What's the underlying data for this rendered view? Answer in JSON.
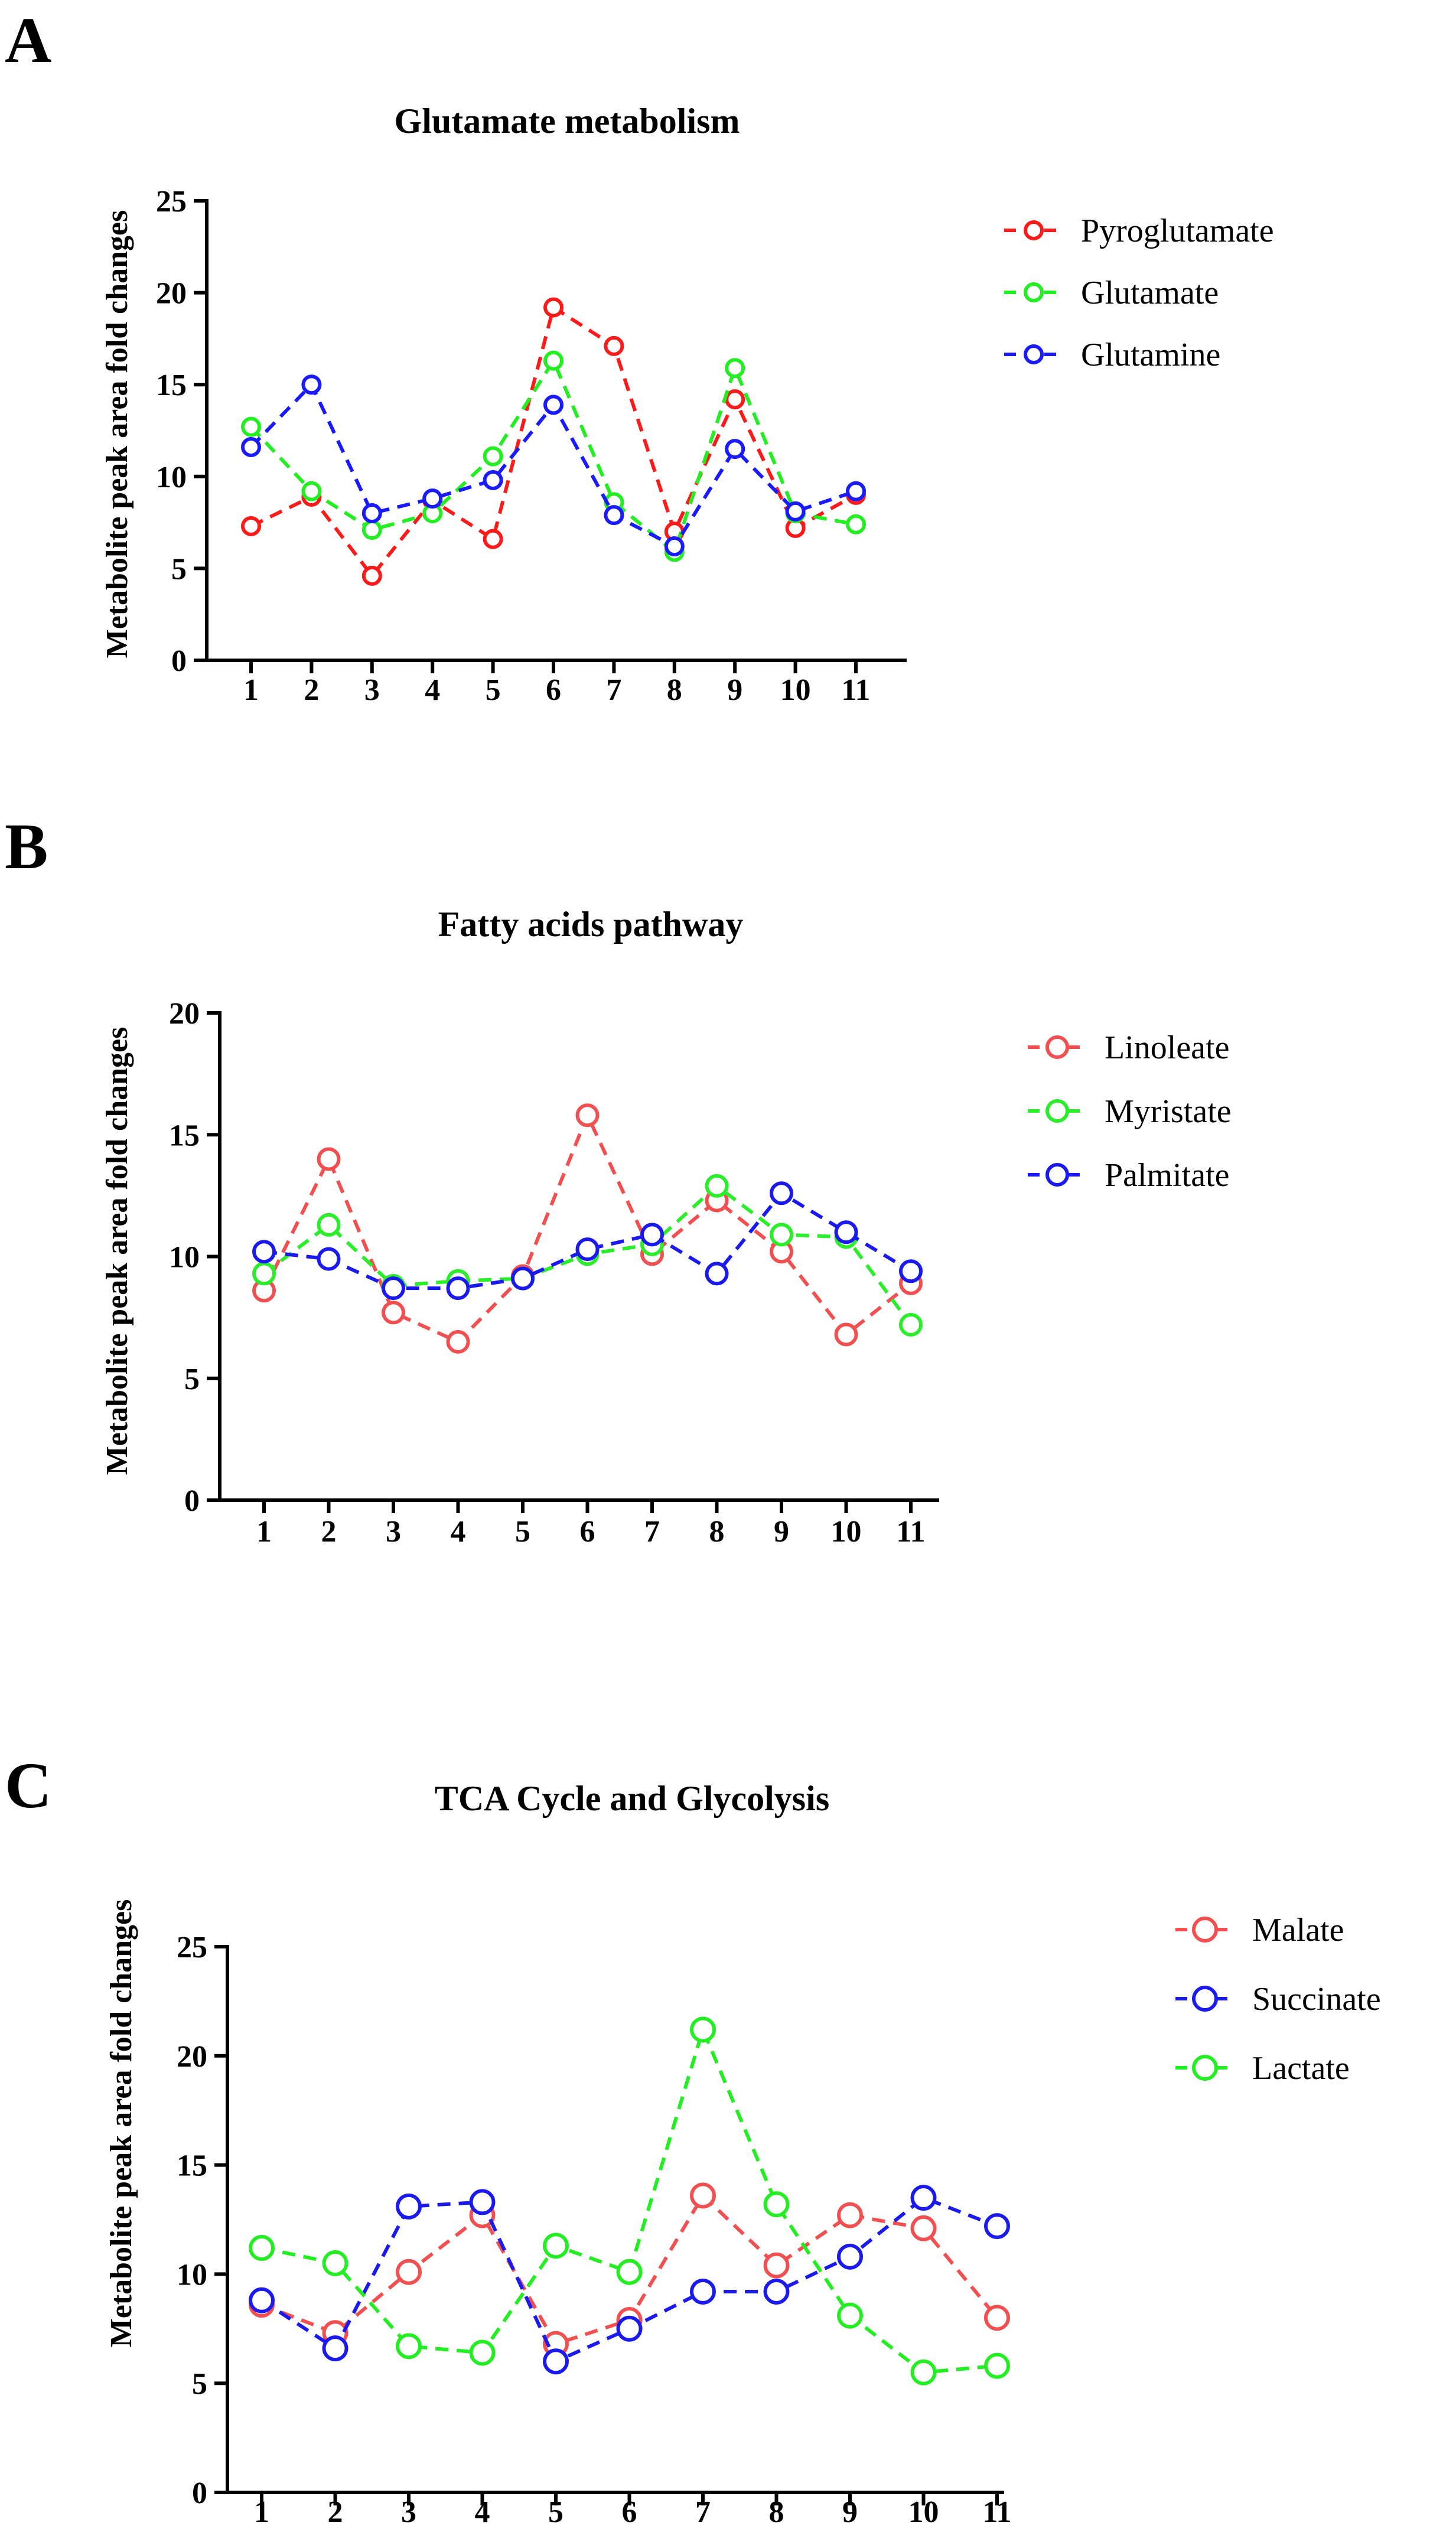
{
  "chart_data": [
    {
      "type": "line",
      "panel": "A",
      "title": "Glutamate metabolism",
      "xlabel": "",
      "ylabel": "Metabolite peak area fold changes",
      "categories": [
        "1",
        "2",
        "3",
        "4",
        "5",
        "6",
        "7",
        "8",
        "9",
        "10",
        "11"
      ],
      "ylim": [
        0,
        25
      ],
      "yticks": [
        "0",
        "5",
        "10",
        "15",
        "20",
        "25"
      ],
      "grid": false,
      "legend_position": "right",
      "series": [
        {
          "name": "Pyroglutamate",
          "color": "#ff1a1a",
          "values": [
            7.3,
            8.9,
            4.6,
            8.7,
            6.6,
            19.2,
            17.1,
            7.0,
            14.2,
            7.2,
            9.0
          ]
        },
        {
          "name": "Glutamate",
          "color": "#22ee22",
          "values": [
            12.7,
            9.2,
            7.1,
            8.0,
            11.1,
            16.3,
            8.6,
            5.9,
            15.9,
            8.0,
            7.4
          ]
        },
        {
          "name": "Glutamine",
          "color": "#1a1aff",
          "values": [
            11.6,
            15.0,
            8.0,
            8.8,
            9.8,
            13.9,
            7.9,
            6.2,
            11.5,
            8.1,
            9.2
          ]
        }
      ]
    },
    {
      "type": "line",
      "panel": "B",
      "title": "Fatty acids pathway",
      "xlabel": "",
      "ylabel": "Metabolite peak area fold changes",
      "categories": [
        "1",
        "2",
        "3",
        "4",
        "5",
        "6",
        "7",
        "8",
        "9",
        "10",
        "11"
      ],
      "ylim": [
        0,
        20
      ],
      "yticks": [
        "0",
        "5",
        "10",
        "15",
        "20"
      ],
      "grid": false,
      "legend_position": "right",
      "series": [
        {
          "name": "Linoleate",
          "color": "#f25050",
          "values": [
            8.6,
            14.0,
            7.7,
            6.5,
            9.2,
            15.8,
            10.1,
            12.3,
            10.2,
            6.8,
            8.9
          ]
        },
        {
          "name": "Myristate",
          "color": "#2aee2a",
          "values": [
            9.3,
            11.3,
            8.8,
            9.0,
            9.1,
            10.1,
            10.5,
            12.9,
            10.9,
            10.8,
            7.2
          ]
        },
        {
          "name": "Palmitate",
          "color": "#1a1aee",
          "values": [
            10.2,
            9.9,
            8.7,
            8.7,
            9.1,
            10.3,
            10.9,
            9.3,
            12.6,
            11.0,
            9.4
          ]
        }
      ]
    },
    {
      "type": "line",
      "panel": "C",
      "title": "TCA Cycle and Glycolysis",
      "xlabel": "",
      "ylabel": "Metabolite peak area fold changes",
      "categories": [
        "1",
        "2",
        "3",
        "4",
        "5",
        "6",
        "7",
        "8",
        "9",
        "10",
        "11"
      ],
      "ylim": [
        0,
        25
      ],
      "yticks": [
        "0",
        "5",
        "10",
        "15",
        "20",
        "25"
      ],
      "grid": false,
      "legend_position": "right",
      "series": [
        {
          "name": "Malate",
          "color": "#f25050",
          "values": [
            8.6,
            7.3,
            10.1,
            12.7,
            6.8,
            7.9,
            13.6,
            10.4,
            12.7,
            12.1,
            8.0
          ]
        },
        {
          "name": "Succinate",
          "color": "#1a1aee",
          "values": [
            8.8,
            6.6,
            13.1,
            13.3,
            6.0,
            7.5,
            9.2,
            9.2,
            10.8,
            13.5,
            12.2
          ]
        },
        {
          "name": "Lactate",
          "color": "#22ee22",
          "values": [
            11.2,
            10.5,
            6.7,
            6.4,
            11.3,
            10.1,
            21.2,
            13.2,
            8.1,
            5.5,
            5.8
          ]
        }
      ]
    }
  ]
}
